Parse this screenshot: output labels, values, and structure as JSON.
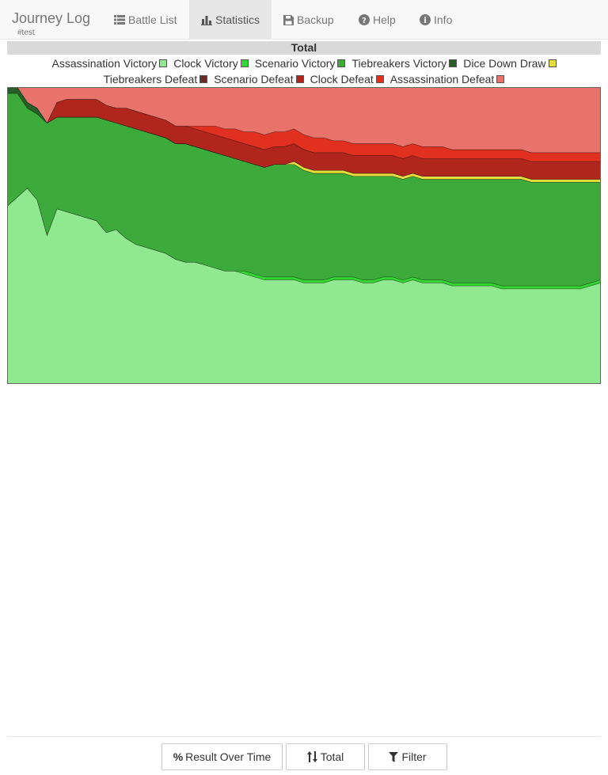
{
  "app": {
    "title": "Journey Log",
    "subtitle": "#test"
  },
  "nav": {
    "battle_list": "Battle List",
    "statistics": "Statistics",
    "backup": "Backup",
    "help": "Help",
    "info": "Info"
  },
  "chart_data": {
    "type": "area",
    "title": "Total",
    "xlabel": "",
    "ylabel": "",
    "ylim": [
      0,
      1
    ],
    "stacked": "percent",
    "legend_position": "top",
    "grid": false,
    "x": [
      0,
      1,
      2,
      3,
      4,
      5,
      6,
      7,
      8,
      9,
      10,
      11,
      12,
      13,
      14,
      15,
      16,
      17,
      18,
      19,
      20,
      21,
      22,
      23,
      24,
      25,
      26,
      27,
      28,
      29,
      30,
      31,
      32,
      33,
      34,
      35,
      36,
      37,
      38,
      39,
      40,
      41,
      42,
      43,
      44,
      45,
      46,
      47,
      48,
      49,
      50,
      51,
      52,
      53,
      54,
      55,
      56,
      57,
      58,
      59,
      60
    ],
    "series": [
      {
        "name": "Assassination Victory",
        "color": "#90e990",
        "values": [
          0.6,
          0.63,
          0.66,
          0.62,
          0.5,
          0.59,
          0.58,
          0.57,
          0.56,
          0.55,
          0.51,
          0.52,
          0.49,
          0.47,
          0.46,
          0.45,
          0.44,
          0.42,
          0.41,
          0.41,
          0.4,
          0.39,
          0.38,
          0.38,
          0.37,
          0.36,
          0.35,
          0.35,
          0.35,
          0.35,
          0.34,
          0.34,
          0.34,
          0.35,
          0.35,
          0.35,
          0.34,
          0.34,
          0.35,
          0.35,
          0.34,
          0.35,
          0.34,
          0.34,
          0.34,
          0.33,
          0.33,
          0.33,
          0.33,
          0.33,
          0.32,
          0.32,
          0.32,
          0.32,
          0.32,
          0.32,
          0.32,
          0.32,
          0.32,
          0.33,
          0.34
        ]
      },
      {
        "name": "Clock Victory",
        "color": "#33d633",
        "values": [
          0.0,
          0.0,
          0.0,
          0.0,
          0.0,
          0.0,
          0.0,
          0.0,
          0.0,
          0.0,
          0.0,
          0.0,
          0.0,
          0.0,
          0.0,
          0.0,
          0.0,
          0.0,
          0.0,
          0.0,
          0.0,
          0.0,
          0.0,
          0.0,
          0.01,
          0.01,
          0.01,
          0.01,
          0.01,
          0.01,
          0.01,
          0.01,
          0.01,
          0.01,
          0.01,
          0.01,
          0.01,
          0.01,
          0.01,
          0.01,
          0.01,
          0.01,
          0.01,
          0.01,
          0.01,
          0.01,
          0.01,
          0.01,
          0.01,
          0.01,
          0.01,
          0.01,
          0.01,
          0.01,
          0.01,
          0.01,
          0.01,
          0.01,
          0.01,
          0.01,
          0.01
        ]
      },
      {
        "name": "Scenario Victory",
        "color": "#3cab3c",
        "values": [
          0.38,
          0.35,
          0.27,
          0.29,
          0.38,
          0.31,
          0.32,
          0.33,
          0.34,
          0.35,
          0.38,
          0.36,
          0.38,
          0.39,
          0.39,
          0.39,
          0.39,
          0.39,
          0.4,
          0.39,
          0.39,
          0.39,
          0.39,
          0.38,
          0.37,
          0.37,
          0.37,
          0.38,
          0.38,
          0.38,
          0.37,
          0.36,
          0.36,
          0.35,
          0.35,
          0.34,
          0.35,
          0.35,
          0.34,
          0.34,
          0.34,
          0.34,
          0.34,
          0.34,
          0.34,
          0.35,
          0.35,
          0.35,
          0.35,
          0.35,
          0.36,
          0.36,
          0.36,
          0.35,
          0.35,
          0.35,
          0.35,
          0.35,
          0.35,
          0.34,
          0.33
        ]
      },
      {
        "name": "Tiebreakers Victory",
        "color": "#285f28",
        "values": [
          0.02,
          0.02,
          0.02,
          0.02,
          0.0,
          0.0,
          0.0,
          0.0,
          0.0,
          0.0,
          0.0,
          0.0,
          0.0,
          0.0,
          0.0,
          0.0,
          0.0,
          0.0,
          0.0,
          0.0,
          0.0,
          0.0,
          0.0,
          0.0,
          0.0,
          0.0,
          0.0,
          0.0,
          0.0,
          0.0,
          0.0,
          0.0,
          0.0,
          0.0,
          0.0,
          0.0,
          0.0,
          0.0,
          0.0,
          0.0,
          0.0,
          0.0,
          0.0,
          0.0,
          0.0,
          0.0,
          0.0,
          0.0,
          0.0,
          0.0,
          0.0,
          0.0,
          0.0,
          0.0,
          0.0,
          0.0,
          0.0,
          0.0,
          0.0,
          0.0,
          0.0
        ]
      },
      {
        "name": "Dice Down Draw",
        "color": "#e5de3a",
        "values": [
          0.0,
          0.0,
          0.0,
          0.0,
          0.0,
          0.0,
          0.0,
          0.0,
          0.0,
          0.0,
          0.0,
          0.0,
          0.0,
          0.0,
          0.0,
          0.0,
          0.0,
          0.0,
          0.0,
          0.0,
          0.0,
          0.0,
          0.0,
          0.0,
          0.0,
          0.0,
          0.0,
          0.0,
          0.0,
          0.01,
          0.01,
          0.01,
          0.01,
          0.01,
          0.01,
          0.01,
          0.01,
          0.01,
          0.01,
          0.01,
          0.01,
          0.01,
          0.01,
          0.01,
          0.01,
          0.01,
          0.01,
          0.01,
          0.01,
          0.01,
          0.01,
          0.01,
          0.01,
          0.01,
          0.01,
          0.01,
          0.01,
          0.01,
          0.01,
          0.01,
          0.01
        ]
      },
      {
        "name": "Tiebreakers Defeat",
        "color": "#6b2b2b",
        "values": [
          0.0,
          0.0,
          0.0,
          0.0,
          0.0,
          0.0,
          0.0,
          0.0,
          0.0,
          0.0,
          0.0,
          0.0,
          0.0,
          0.0,
          0.0,
          0.0,
          0.0,
          0.0,
          0.0,
          0.0,
          0.0,
          0.0,
          0.0,
          0.0,
          0.0,
          0.0,
          0.0,
          0.0,
          0.0,
          0.0,
          0.0,
          0.0,
          0.0,
          0.0,
          0.0,
          0.0,
          0.0,
          0.0,
          0.0,
          0.0,
          0.0,
          0.0,
          0.0,
          0.0,
          0.0,
          0.0,
          0.0,
          0.0,
          0.0,
          0.0,
          0.0,
          0.0,
          0.0,
          0.0,
          0.0,
          0.0,
          0.0,
          0.0,
          0.0,
          0.0,
          0.0
        ]
      },
      {
        "name": "Scenario Defeat",
        "color": "#b0261d",
        "values": [
          0.0,
          0.0,
          0.0,
          0.0,
          0.0,
          0.05,
          0.06,
          0.06,
          0.06,
          0.06,
          0.05,
          0.05,
          0.06,
          0.06,
          0.06,
          0.06,
          0.06,
          0.06,
          0.06,
          0.06,
          0.06,
          0.06,
          0.06,
          0.06,
          0.06,
          0.06,
          0.06,
          0.06,
          0.06,
          0.06,
          0.06,
          0.06,
          0.06,
          0.06,
          0.06,
          0.06,
          0.06,
          0.06,
          0.06,
          0.06,
          0.06,
          0.06,
          0.06,
          0.06,
          0.06,
          0.06,
          0.06,
          0.06,
          0.06,
          0.06,
          0.06,
          0.06,
          0.06,
          0.06,
          0.06,
          0.06,
          0.06,
          0.06,
          0.06,
          0.06,
          0.06
        ]
      },
      {
        "name": "Clock Defeat",
        "color": "#e1301f",
        "values": [
          0.0,
          0.0,
          0.0,
          0.0,
          0.0,
          0.0,
          0.0,
          0.0,
          0.0,
          0.0,
          0.0,
          0.0,
          0.0,
          0.0,
          0.0,
          0.0,
          0.0,
          0.0,
          0.0,
          0.01,
          0.02,
          0.03,
          0.03,
          0.04,
          0.04,
          0.05,
          0.05,
          0.05,
          0.05,
          0.05,
          0.05,
          0.05,
          0.05,
          0.04,
          0.04,
          0.04,
          0.04,
          0.04,
          0.04,
          0.04,
          0.04,
          0.04,
          0.04,
          0.04,
          0.04,
          0.03,
          0.03,
          0.03,
          0.03,
          0.03,
          0.03,
          0.03,
          0.03,
          0.03,
          0.03,
          0.03,
          0.03,
          0.03,
          0.03,
          0.03,
          0.03
        ]
      },
      {
        "name": "Assassination Defeat",
        "color": "#e8736a",
        "values": [
          0.0,
          0.0,
          0.05,
          0.07,
          0.12,
          0.05,
          0.04,
          0.04,
          0.04,
          0.04,
          0.06,
          0.07,
          0.07,
          0.08,
          0.09,
          0.1,
          0.11,
          0.13,
          0.13,
          0.13,
          0.13,
          0.13,
          0.14,
          0.14,
          0.15,
          0.15,
          0.16,
          0.15,
          0.15,
          0.14,
          0.16,
          0.17,
          0.17,
          0.18,
          0.18,
          0.19,
          0.19,
          0.19,
          0.19,
          0.19,
          0.2,
          0.19,
          0.2,
          0.2,
          0.2,
          0.21,
          0.21,
          0.21,
          0.21,
          0.21,
          0.21,
          0.21,
          0.21,
          0.22,
          0.22,
          0.22,
          0.22,
          0.22,
          0.22,
          0.22,
          0.22
        ]
      }
    ]
  },
  "footer": {
    "result_button": "Result Over Time",
    "total_button": "Total",
    "filter_button": "Filter"
  }
}
